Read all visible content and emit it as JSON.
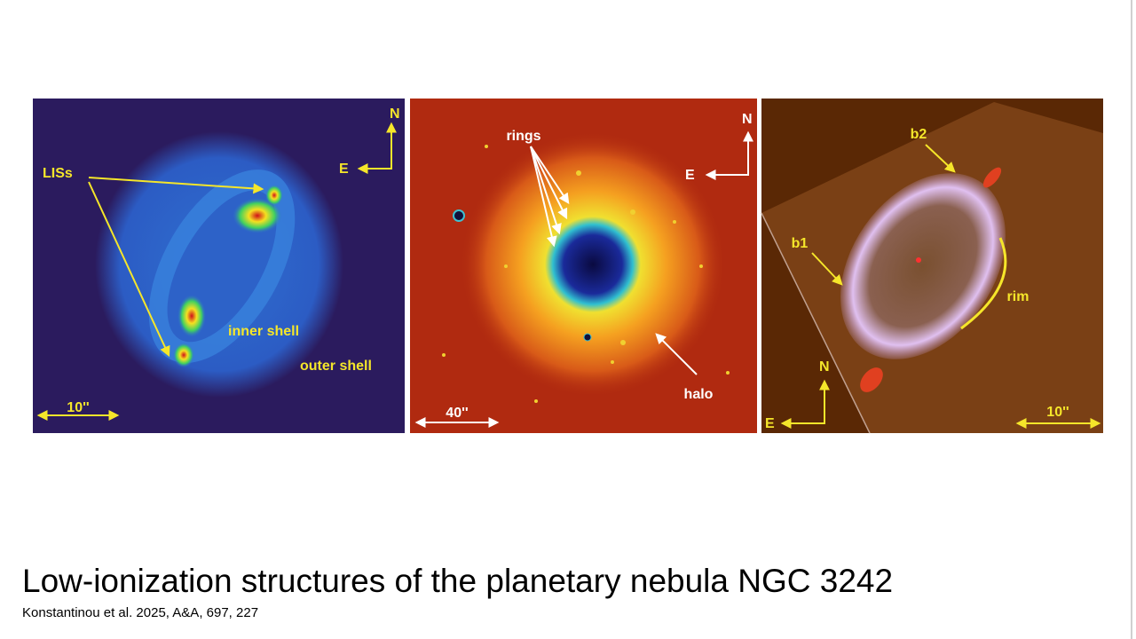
{
  "slide": {
    "title": "Low-ionization structures of the planetary nebula NGC 3242",
    "citation": "Konstantinou et al. 2025, A&A, 697, 227"
  },
  "panels": [
    {
      "labels": [
        "LISs",
        "inner shell",
        "outer shell"
      ],
      "compass": {
        "north": "N",
        "east": "E"
      },
      "scale": "10''"
    },
    {
      "labels": [
        "rings",
        "halo"
      ],
      "compass": {
        "north": "N",
        "east": "E"
      },
      "scale": "40''"
    },
    {
      "labels": [
        "b2",
        "b1",
        "rim"
      ],
      "compass": {
        "north": "N",
        "east": "E"
      },
      "scale": "10''"
    }
  ]
}
